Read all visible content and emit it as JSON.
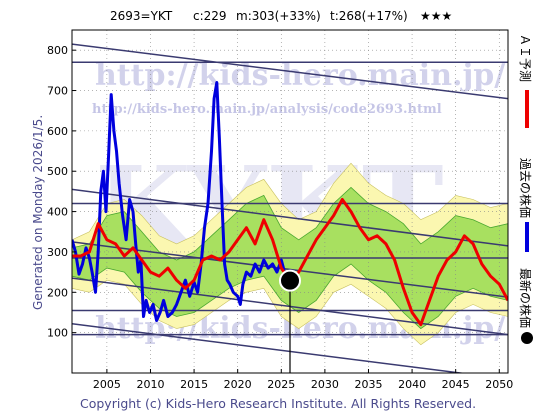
{
  "header": {
    "code": "2693=YKT",
    "current": "c:229",
    "mid": "m:303(+33%)",
    "target": "t:268(+17%)",
    "stars": "★★★"
  },
  "side_text": "Generated on Monday 2026/1/5.",
  "copyright": "Copyright (c) Kids-Hero Research Institute. All Rights Reserved.",
  "watermark": {
    "url_large": "http://kids-hero.main.jp/",
    "url_small": "http://kids-hero.main.jp/analysis/code2693.html",
    "big_text": "KYKT"
  },
  "legend": [
    {
      "label": "ＡＩ予測",
      "color": "#ee0000"
    },
    {
      "label": "過去の株価",
      "color": "#0000dd"
    },
    {
      "label": "最新の株価",
      "color": "#000000"
    }
  ],
  "chart_data": {
    "type": "line",
    "xlim": [
      2001,
      2051
    ],
    "ylim": [
      0,
      850
    ],
    "xticks": [
      2005,
      2010,
      2015,
      2020,
      2025,
      2030,
      2035,
      2040,
      2045,
      2050
    ],
    "yticks": [
      100,
      200,
      300,
      400,
      500,
      600,
      700,
      800
    ],
    "current_point": {
      "x": 2026.0,
      "y": 229
    },
    "horizontal_lines": [
      770,
      420,
      285,
      155,
      95
    ],
    "trend_lines": [
      {
        "x0": 2001,
        "y0": 815,
        "x1": 2051,
        "y1": 680
      },
      {
        "x0": 2001,
        "y0": 455,
        "x1": 2051,
        "y1": 315
      },
      {
        "x0": 2001,
        "y0": 325,
        "x1": 2051,
        "y1": 188
      },
      {
        "x0": 2001,
        "y0": 235,
        "x1": 2051,
        "y1": 95
      },
      {
        "x0": 2001,
        "y0": 122,
        "x1": 2051,
        "y1": -15
      }
    ],
    "past_price": {
      "name": "過去の株価",
      "color": "#0000dd",
      "x": [
        2001,
        2001.4,
        2001.8,
        2002.2,
        2002.6,
        2003.0,
        2003.3,
        2003.7,
        2004.0,
        2004.3,
        2004.6,
        2004.9,
        2005.2,
        2005.5,
        2005.8,
        2006.1,
        2006.4,
        2006.8,
        2007.2,
        2007.6,
        2008.0,
        2008.3,
        2008.6,
        2008.9,
        2009.2,
        2009.5,
        2009.9,
        2010.3,
        2010.7,
        2011.1,
        2011.5,
        2012.0,
        2012.5,
        2013.0,
        2013.5,
        2014.0,
        2014.5,
        2015.0,
        2015.4,
        2015.8,
        2016.2,
        2016.6,
        2017.0,
        2017.3,
        2017.6,
        2017.9,
        2018.2,
        2018.5,
        2018.8,
        2019.1,
        2019.5,
        2020.0,
        2020.3,
        2020.6,
        2021.0,
        2021.5,
        2022.0,
        2022.5,
        2023.0,
        2023.5,
        2024.0,
        2024.5,
        2025.0,
        2025.5,
        2026.0
      ],
      "values": [
        330,
        300,
        245,
        270,
        310,
        285,
        250,
        200,
        300,
        450,
        500,
        400,
        540,
        690,
        600,
        550,
        470,
        390,
        330,
        430,
        400,
        320,
        250,
        280,
        140,
        180,
        150,
        170,
        130,
        150,
        180,
        140,
        150,
        170,
        200,
        230,
        190,
        225,
        200,
        270,
        360,
        420,
        550,
        680,
        720,
        580,
        420,
        270,
        230,
        220,
        200,
        190,
        170,
        220,
        250,
        240,
        270,
        250,
        280,
        260,
        270,
        250,
        280,
        240,
        229
      ]
    },
    "ai_forecast": {
      "name": "ＡＩ予測",
      "color": "#ee0000",
      "x": [
        2001,
        2002,
        2003,
        2004,
        2005,
        2006,
        2007,
        2008,
        2009,
        2010,
        2011,
        2012,
        2013,
        2014,
        2015,
        2016,
        2017,
        2018,
        2019,
        2020,
        2021,
        2022,
        2023,
        2024,
        2025,
        2026,
        2027,
        2028,
        2029,
        2030,
        2031,
        2032,
        2033,
        2034,
        2035,
        2036,
        2037,
        2038,
        2039,
        2040,
        2041,
        2042,
        2043,
        2044,
        2045,
        2046,
        2047,
        2048,
        2049,
        2050,
        2051
      ],
      "values": [
        290,
        290,
        300,
        370,
        330,
        320,
        290,
        310,
        280,
        250,
        240,
        260,
        230,
        210,
        230,
        280,
        290,
        280,
        300,
        330,
        360,
        320,
        380,
        330,
        260,
        230,
        250,
        290,
        330,
        360,
        390,
        430,
        400,
        360,
        330,
        340,
        320,
        280,
        210,
        150,
        120,
        180,
        240,
        280,
        300,
        340,
        320,
        270,
        240,
        220,
        180
      ]
    },
    "band_outer": {
      "x": [
        2001,
        2003,
        2005,
        2007,
        2009,
        2011,
        2013,
        2015,
        2017,
        2019,
        2021,
        2023,
        2025,
        2027,
        2029,
        2031,
        2033,
        2035,
        2037,
        2039,
        2041,
        2043,
        2045,
        2047,
        2049,
        2051
      ],
      "upper": [
        330,
        350,
        420,
        430,
        390,
        340,
        320,
        340,
        380,
        420,
        460,
        480,
        420,
        380,
        400,
        470,
        520,
        470,
        440,
        420,
        380,
        400,
        440,
        430,
        410,
        420
      ],
      "lower": [
        210,
        200,
        230,
        220,
        170,
        130,
        110,
        120,
        150,
        180,
        200,
        210,
        140,
        110,
        140,
        200,
        220,
        190,
        160,
        110,
        70,
        100,
        150,
        170,
        150,
        140
      ]
    },
    "band_inner": {
      "x": [
        2001,
        2003,
        2005,
        2007,
        2009,
        2011,
        2013,
        2015,
        2017,
        2019,
        2021,
        2023,
        2025,
        2027,
        2029,
        2031,
        2033,
        2035,
        2037,
        2039,
        2041,
        2043,
        2045,
        2047,
        2049,
        2051
      ],
      "upper": [
        310,
        320,
        390,
        400,
        350,
        300,
        280,
        300,
        340,
        380,
        420,
        440,
        360,
        330,
        360,
        420,
        460,
        420,
        400,
        370,
        320,
        350,
        390,
        380,
        360,
        370
      ],
      "lower": [
        240,
        230,
        260,
        250,
        200,
        160,
        140,
        150,
        180,
        210,
        230,
        240,
        180,
        150,
        180,
        240,
        270,
        230,
        200,
        150,
        110,
        140,
        190,
        210,
        190,
        180
      ]
    }
  }
}
